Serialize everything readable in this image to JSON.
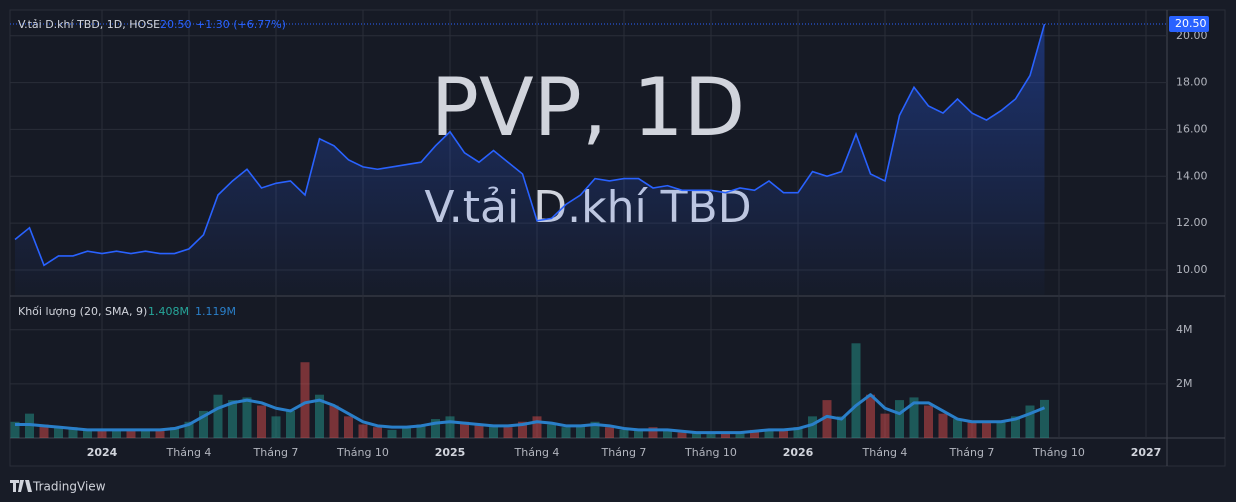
{
  "chart_data": {
    "type": "area",
    "watermark_title": "PVP, 1D",
    "watermark_subtitle": "V.tải D.khí TBD",
    "change": "+1.30 (+6.77%)",
    "categories": [
      null,
      null,
      null,
      null,
      null,
      null,
      "2024",
      null,
      null,
      null,
      null,
      null,
      "Tháng 4",
      null,
      null,
      null,
      null,
      null,
      "Tháng 7",
      null,
      null,
      null,
      null,
      null,
      "Tháng 10",
      null,
      null,
      null,
      null,
      null,
      "2025",
      null,
      null,
      null,
      null,
      null,
      "Tháng 4",
      null,
      null,
      null,
      null,
      null,
      "Tháng 7",
      null,
      null,
      null,
      null,
      null,
      "Tháng 10",
      null,
      null,
      null,
      null,
      null,
      "2026",
      null,
      null,
      null,
      null,
      null,
      "Tháng 4",
      null,
      null,
      null,
      null,
      null,
      "Tháng 7",
      null,
      null,
      null,
      null,
      null,
      "Tháng 10",
      null,
      null,
      null,
      null,
      null,
      "2027"
    ],
    "series": [
      {
        "name": "V.tải D.khí TBD, 1D, HOSE",
        "color": "#2962ff",
        "last_value_label": "20.50",
        "values": [
          11.3,
          11.8,
          10.2,
          10.6,
          10.6,
          10.8,
          10.7,
          10.8,
          10.7,
          10.8,
          10.7,
          10.7,
          10.9,
          11.5,
          13.2,
          13.8,
          14.3,
          13.5,
          13.7,
          13.8,
          13.2,
          15.6,
          15.3,
          14.7,
          14.4,
          14.3,
          14.4,
          14.5,
          14.6,
          15.3,
          15.9,
          15.0,
          14.6,
          15.1,
          14.6,
          14.1,
          12.1,
          12.2,
          12.8,
          13.2,
          13.9,
          13.8,
          13.9,
          13.9,
          13.5,
          13.6,
          13.4,
          13.4,
          13.4,
          13.3,
          13.5,
          13.4,
          13.8,
          13.3,
          13.3,
          14.2,
          14.0,
          14.2,
          15.8,
          14.1,
          13.8,
          16.6,
          17.8,
          17.0,
          16.7,
          17.3,
          16.7,
          16.4,
          16.8,
          17.3,
          18.3,
          20.5,
          null,
          null,
          null,
          null,
          null,
          null,
          null
        ]
      }
    ],
    "ylim": [
      8.93,
      21.1
    ],
    "yticks": [
      {
        "value": 10,
        "label": "10.00"
      },
      {
        "value": 12,
        "label": "12.00"
      },
      {
        "value": 14,
        "label": "14.00"
      },
      {
        "value": 16,
        "label": "16.00"
      },
      {
        "value": 18,
        "label": "18.00"
      },
      {
        "value": 20,
        "label": "20.00"
      }
    ],
    "grid": true,
    "volume": {
      "type": "bar",
      "series": [
        {
          "name": "Khối lượng (20, SMA, 9)",
          "color": "#26a69a",
          "down_color": "#ef5350",
          "last_value_label": "1.408M",
          "values": [
            600000,
            900000,
            500000,
            400000,
            400000,
            300000,
            300000,
            300000,
            300000,
            300000,
            300000,
            400000,
            600000,
            1000000,
            1600000,
            1400000,
            1500000,
            1200000,
            800000,
            1000000,
            2800000,
            1600000,
            1200000,
            800000,
            500000,
            400000,
            300000,
            400000,
            500000,
            700000,
            800000,
            600000,
            500000,
            500000,
            400000,
            600000,
            800000,
            500000,
            400000,
            500000,
            600000,
            400000,
            300000,
            300000,
            400000,
            300000,
            200000,
            200000,
            200000,
            200000,
            200000,
            300000,
            300000,
            300000,
            400000,
            800000,
            1400000,
            800000,
            3500000,
            1600000,
            900000,
            1400000,
            1500000,
            1200000,
            900000,
            700000,
            600000,
            600000,
            600000,
            800000,
            1200000,
            1408000,
            null,
            null,
            null,
            null,
            null,
            null,
            null
          ]
        },
        {
          "type": "line",
          "color": "#2a7fc9",
          "last_value_label": "1.119M",
          "values": [
            500000,
            500000,
            450000,
            400000,
            350000,
            300000,
            300000,
            300000,
            300000,
            300000,
            300000,
            350000,
            500000,
            800000,
            1100000,
            1300000,
            1400000,
            1300000,
            1100000,
            1000000,
            1300000,
            1400000,
            1200000,
            900000,
            600000,
            450000,
            400000,
            400000,
            450000,
            550000,
            600000,
            550000,
            500000,
            450000,
            450000,
            500000,
            600000,
            550000,
            450000,
            450000,
            500000,
            450000,
            350000,
            300000,
            300000,
            300000,
            250000,
            200000,
            200000,
            200000,
            200000,
            250000,
            300000,
            300000,
            350000,
            500000,
            800000,
            700000,
            1200000,
            1600000,
            1100000,
            900000,
            1300000,
            1300000,
            1000000,
            700000,
            600000,
            600000,
            600000,
            700000,
            900000,
            1119000,
            null,
            null,
            null,
            null,
            null,
            null,
            null
          ]
        }
      ],
      "ylim": [
        0,
        5100000
      ],
      "yticks": [
        {
          "value": 2000000,
          "label": "2M"
        },
        {
          "value": 4000000,
          "label": "4M"
        }
      ]
    },
    "footer": "TradingView"
  }
}
